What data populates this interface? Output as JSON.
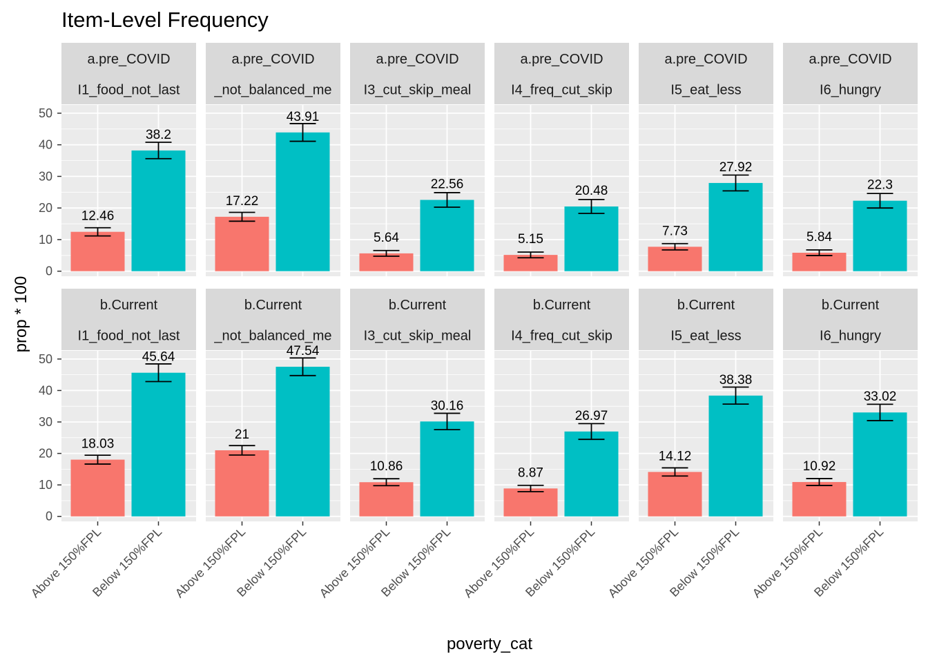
{
  "chart_data": {
    "type": "bar",
    "title": "Item-Level Frequency",
    "xlabel": "poverty_cat",
    "ylabel": "prop * 100",
    "ylim": [
      0,
      50
    ],
    "yticks": [
      "0",
      "10",
      "20",
      "30",
      "40",
      "50"
    ],
    "grid": true,
    "legend": "none",
    "categories": [
      "Above 150%FPL",
      "Below 150%FPL"
    ],
    "colors": {
      "Above 150%FPL": "#F8766D",
      "Below 150%FPL": "#00BFC4",
      "panel_bg": "#EBEBEB",
      "strip_bg": "#D9D9D9",
      "grid": "#FFFFFF"
    },
    "row_labels": [
      "a.pre_COVID",
      "b.Current"
    ],
    "item_labels": [
      "I1_food_not_last",
      "_not_balanced_me",
      "I3_cut_skip_meal",
      "I4_freq_cut_skip",
      "I5_eat_less",
      "I6_hungry"
    ],
    "panels": [
      {
        "row": "a.pre_COVID",
        "item": "I1_food_not_last",
        "values": [
          12.46,
          38.2
        ],
        "labels": [
          "12.46",
          "38.2"
        ],
        "err": [
          1.3,
          2.6
        ]
      },
      {
        "row": "a.pre_COVID",
        "item": "_not_balanced_me",
        "values": [
          17.22,
          43.91
        ],
        "labels": [
          "17.22",
          "43.91"
        ],
        "err": [
          1.4,
          2.8
        ]
      },
      {
        "row": "a.pre_COVID",
        "item": "I3_cut_skip_meal",
        "values": [
          5.64,
          22.56
        ],
        "labels": [
          "5.64",
          "22.56"
        ],
        "err": [
          0.9,
          2.3
        ]
      },
      {
        "row": "a.pre_COVID",
        "item": "I4_freq_cut_skip",
        "values": [
          5.15,
          20.48
        ],
        "labels": [
          "5.15",
          "20.48"
        ],
        "err": [
          0.9,
          2.2
        ]
      },
      {
        "row": "a.pre_COVID",
        "item": "I5_eat_less",
        "values": [
          7.73,
          27.92
        ],
        "labels": [
          "7.73",
          "27.92"
        ],
        "err": [
          1.0,
          2.5
        ]
      },
      {
        "row": "a.pre_COVID",
        "item": "I6_hungry",
        "values": [
          5.84,
          22.3
        ],
        "labels": [
          "5.84",
          "22.3"
        ],
        "err": [
          0.9,
          2.3
        ]
      },
      {
        "row": "b.Current",
        "item": "I1_food_not_last",
        "values": [
          18.03,
          45.64
        ],
        "labels": [
          "18.03",
          "45.64"
        ],
        "err": [
          1.4,
          2.8
        ]
      },
      {
        "row": "b.Current",
        "item": "_not_balanced_me",
        "values": [
          21.0,
          47.54
        ],
        "labels": [
          "21",
          "47.54"
        ],
        "err": [
          1.5,
          2.8
        ]
      },
      {
        "row": "b.Current",
        "item": "I3_cut_skip_meal",
        "values": [
          10.86,
          30.16
        ],
        "labels": [
          "10.86",
          "30.16"
        ],
        "err": [
          1.1,
          2.6
        ]
      },
      {
        "row": "b.Current",
        "item": "I4_freq_cut_skip",
        "values": [
          8.87,
          26.97
        ],
        "labels": [
          "8.87",
          "26.97"
        ],
        "err": [
          1.0,
          2.5
        ]
      },
      {
        "row": "b.Current",
        "item": "I5_eat_less",
        "values": [
          14.12,
          38.38
        ],
        "labels": [
          "14.12",
          "38.38"
        ],
        "err": [
          1.3,
          2.7
        ]
      },
      {
        "row": "b.Current",
        "item": "I6_hungry",
        "values": [
          10.92,
          33.02
        ],
        "labels": [
          "10.92",
          "33.02"
        ],
        "err": [
          1.1,
          2.6
        ]
      }
    ]
  }
}
